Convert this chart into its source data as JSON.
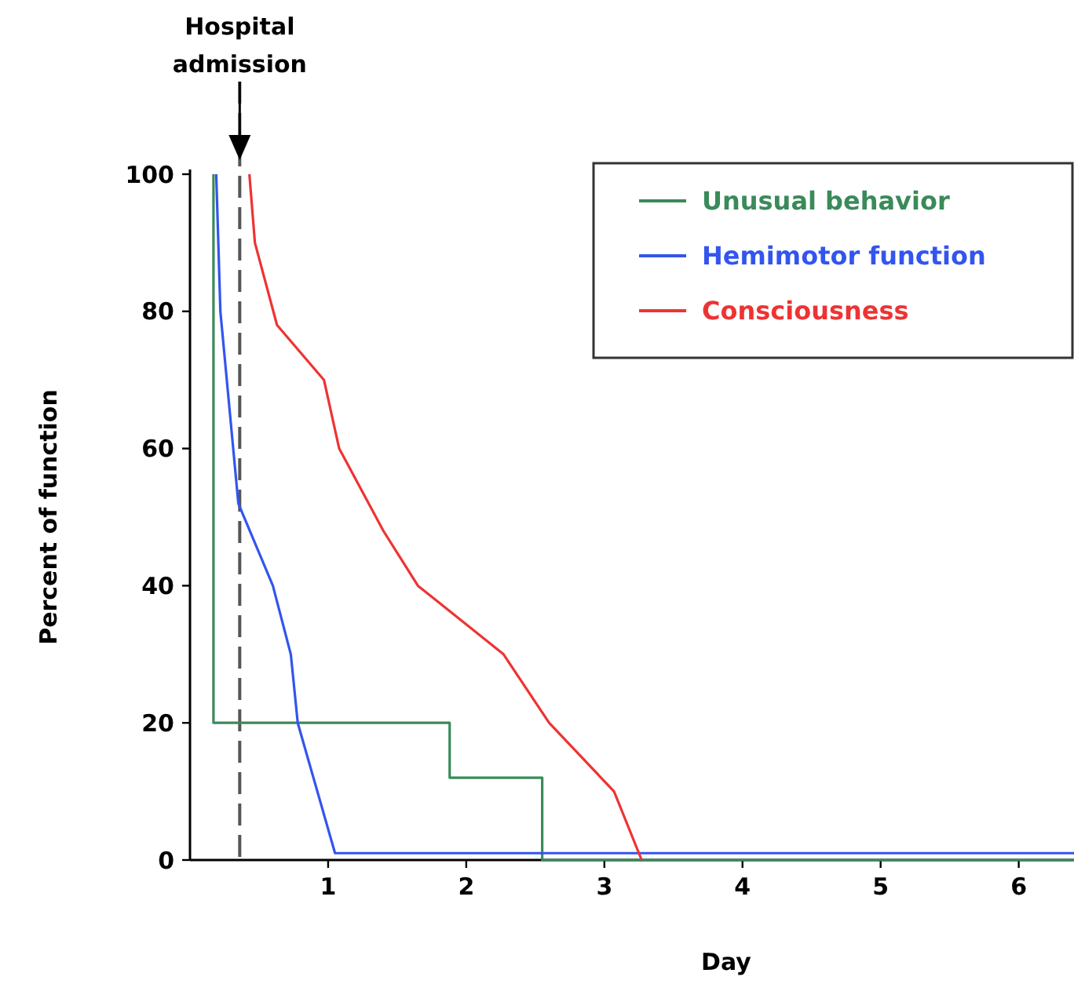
{
  "chart_data": {
    "type": "line",
    "xlabel": "Day",
    "ylabel": "Percent of function",
    "xlim": [
      0,
      6.4
    ],
    "ylim": [
      0,
      100
    ],
    "xticks": [
      1,
      2,
      3,
      4,
      5,
      6
    ],
    "yticks": [
      0,
      20,
      40,
      60,
      80,
      100
    ],
    "legend": "top right",
    "marker": "none",
    "line_style": "solid",
    "series": [
      {
        "name": "Unusual behavior",
        "color": "#3a8a5a",
        "x": [
          0.17,
          0.17,
          1.88,
          1.88,
          2.55,
          2.55,
          6.4
        ],
        "values": [
          100,
          20,
          20,
          12,
          12,
          0,
          0
        ]
      },
      {
        "name": "Hemimotor function",
        "color": "#3355ee",
        "x": [
          0.19,
          0.22,
          0.35,
          0.6,
          0.73,
          0.78,
          1.05,
          6.4
        ],
        "values": [
          100,
          80,
          52,
          40,
          30,
          20,
          1,
          1
        ]
      },
      {
        "name": "Consciousness",
        "color": "#ee3333",
        "x": [
          0.43,
          0.47,
          0.63,
          0.97,
          1.08,
          1.4,
          1.65,
          2.27,
          2.6,
          3.07,
          3.27
        ],
        "values": [
          100,
          90,
          78,
          70,
          60,
          48,
          40,
          30,
          20,
          10,
          0
        ]
      }
    ],
    "ref_lines": [
      {
        "axis": "x",
        "value": 0.36,
        "label": "Hospital admission",
        "color": "#555555",
        "line_style": "dashed"
      }
    ]
  }
}
